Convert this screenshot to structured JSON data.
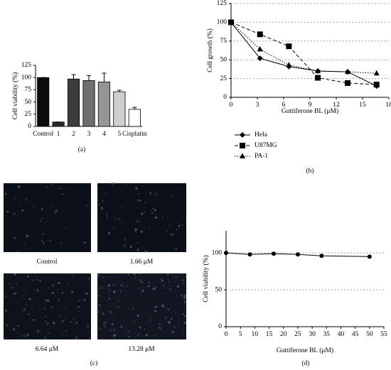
{
  "chart_data": [
    {
      "type": "bar",
      "panel_label": "(a)",
      "ylabel": "Cell viability (%)",
      "categories": [
        "Control",
        "1",
        "2",
        "3",
        "4",
        "5",
        "Cisplatin"
      ],
      "values": [
        100,
        9,
        97,
        94,
        91,
        71,
        35
      ],
      "errors": [
        0,
        0,
        9,
        10,
        18,
        3,
        4
      ],
      "colors": [
        "#0a0a0a",
        "#2a2a2a",
        "#3c3c3c",
        "#6e6e6e",
        "#959595",
        "#cfcfcf",
        "#ffffff"
      ],
      "ylim": [
        0,
        125
      ],
      "yticks": [
        0,
        25,
        50,
        75,
        100,
        125
      ],
      "grid": false
    },
    {
      "type": "line",
      "panel_label": "(b)",
      "ylabel": "Cell growth (%)",
      "xlabel": "Guttiferone BL (μM)",
      "x": [
        0,
        3.3,
        6.6,
        9.9,
        13.3,
        16.6
      ],
      "series": [
        {
          "name": "Hela",
          "color": "#000000",
          "marker": "diamond",
          "dash": "solid",
          "values": [
            100,
            52,
            41,
            35,
            34,
            15
          ]
        },
        {
          "name": "U87MG",
          "color": "#000000",
          "marker": "square",
          "dash": "dashed",
          "values": [
            100,
            84,
            68,
            26,
            19,
            17
          ]
        },
        {
          "name": "PA-1",
          "color": "#000000",
          "marker": "triangle",
          "dash": "dotted",
          "values": [
            100,
            64,
            43,
            35,
            34,
            32
          ]
        }
      ],
      "xlim": [
        0,
        18
      ],
      "xticks": [
        0,
        3,
        6,
        9,
        12,
        15,
        18
      ],
      "ylim": [
        0,
        125
      ],
      "yticks": [
        0,
        25,
        50,
        75,
        100,
        125
      ],
      "grid": true,
      "legend": "bottom-left"
    },
    {
      "type": "line",
      "panel_label": "(d)",
      "ylabel": "Cell viability (%)",
      "xlabel": "Guttiferone BL (μM)",
      "x": [
        0,
        8.3,
        16.6,
        25,
        33.3,
        50
      ],
      "series": [
        {
          "color": "#000000",
          "marker": "circle",
          "dash": "solid",
          "values": [
            100,
            98,
            99,
            98,
            96,
            95
          ]
        }
      ],
      "xlim": [
        0,
        55
      ],
      "xticks": [
        0,
        5,
        10,
        15,
        20,
        25,
        30,
        35,
        40,
        45,
        50,
        55
      ],
      "ylim": [
        0,
        130
      ],
      "yticks": [
        0,
        50,
        100
      ],
      "grid": true
    }
  ],
  "micrographs": {
    "panel_label": "(c)",
    "captions": [
      "Control",
      "1.66 μM",
      "6.64 μM",
      "13.28 μM"
    ]
  }
}
